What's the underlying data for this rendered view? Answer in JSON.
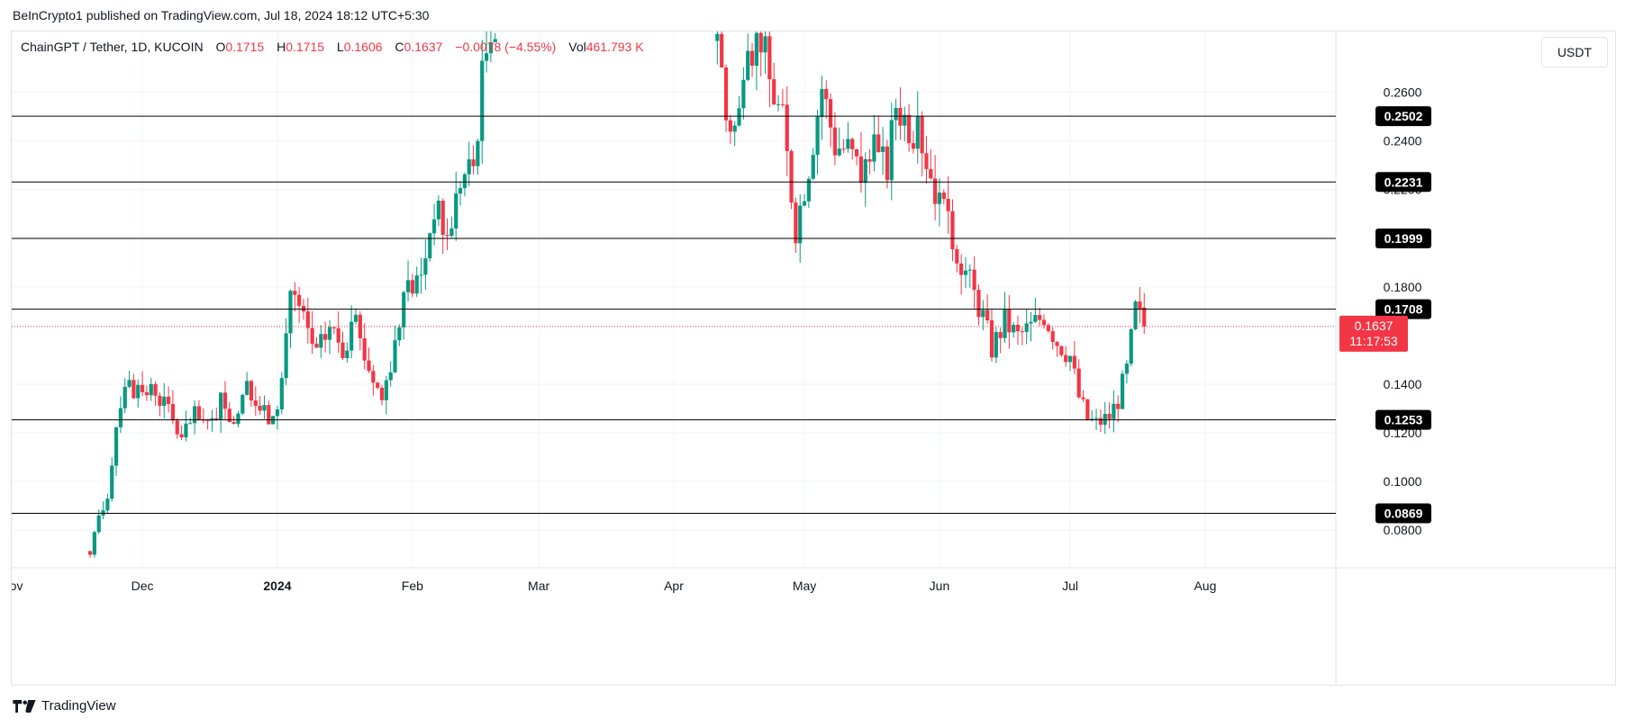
{
  "header": {
    "publisher_line": "BeInCrypto1 published on TradingView.com, Jul 18, 2024 18:12 UTC+5:30"
  },
  "legend": {
    "symbol": "ChainGPT / Tether, 1D, KUCOIN",
    "open_label": "O",
    "open_value": "0.1715",
    "high_label": "H",
    "high_value": "0.1715",
    "low_label": "L",
    "low_value": "0.1606",
    "close_label": "C",
    "close_value": "0.1637",
    "change": "−0.0078 (−4.55%)",
    "vol_label": "Vol",
    "vol_value": "461.793 K"
  },
  "currency_button": "USDT",
  "footer": {
    "brand": "TradingView"
  },
  "colors": {
    "up": "#089981",
    "down": "#f23645",
    "level_line": "#000000",
    "grid": "#f0f3fa",
    "axis_text": "#131722"
  },
  "chart_data": {
    "type": "candlestick",
    "title": "ChainGPT / Tether, 1D, KUCOIN",
    "x_axis": {
      "type": "date",
      "ticks": [
        {
          "date": "2023-11-01",
          "label": "Nov",
          "bold": false
        },
        {
          "date": "2023-12-01",
          "label": "Dec",
          "bold": false
        },
        {
          "date": "2024-01-01",
          "label": "2024",
          "bold": true
        },
        {
          "date": "2024-02-01",
          "label": "Feb",
          "bold": false
        },
        {
          "date": "2024-03-01",
          "label": "Mar",
          "bold": false
        },
        {
          "date": "2024-04-01",
          "label": "Apr",
          "bold": false
        },
        {
          "date": "2024-05-01",
          "label": "May",
          "bold": false
        },
        {
          "date": "2024-06-01",
          "label": "Jun",
          "bold": false
        },
        {
          "date": "2024-07-01",
          "label": "Jul",
          "bold": false
        },
        {
          "date": "2024-08-01",
          "label": "Aug",
          "bold": false
        }
      ],
      "range": [
        "2023-11-01",
        "2024-08-31"
      ]
    },
    "y_axis": {
      "unit": "USDT",
      "range": [
        0.0645,
        0.285
      ],
      "ticks": [
        "0.0800",
        "0.1000",
        "0.1200",
        "0.1400",
        "0.1800",
        "0.2000",
        "0.2200",
        "0.2400",
        "0.2600"
      ]
    },
    "horizontal_levels": [
      "0.2502",
      "0.2231",
      "0.1999",
      "0.1708",
      "0.1253",
      "0.0869"
    ],
    "last_price": {
      "value": "0.1637",
      "countdown": "11:17:53"
    },
    "grid": true,
    "anchors": [
      {
        "date": "2023-11-19",
        "close": 0.068
      },
      {
        "date": "2023-11-21",
        "close": 0.086
      },
      {
        "date": "2023-11-23",
        "close": 0.095
      },
      {
        "date": "2023-11-25",
        "close": 0.124
      },
      {
        "date": "2023-11-27",
        "close": 0.142
      },
      {
        "date": "2023-11-30",
        "close": 0.135
      },
      {
        "date": "2023-12-04",
        "close": 0.138
      },
      {
        "date": "2023-12-07",
        "close": 0.129
      },
      {
        "date": "2023-12-10",
        "close": 0.117
      },
      {
        "date": "2023-12-13",
        "close": 0.127
      },
      {
        "date": "2023-12-16",
        "close": 0.121
      },
      {
        "date": "2023-12-19",
        "close": 0.132
      },
      {
        "date": "2023-12-22",
        "close": 0.126
      },
      {
        "date": "2023-12-25",
        "close": 0.137
      },
      {
        "date": "2023-12-28",
        "close": 0.13
      },
      {
        "date": "2023-12-31",
        "close": 0.124
      },
      {
        "date": "2024-01-02",
        "close": 0.142
      },
      {
        "date": "2024-01-04",
        "close": 0.18
      },
      {
        "date": "2024-01-07",
        "close": 0.166
      },
      {
        "date": "2024-01-10",
        "close": 0.152
      },
      {
        "date": "2024-01-13",
        "close": 0.164
      },
      {
        "date": "2024-01-16",
        "close": 0.155
      },
      {
        "date": "2024-01-19",
        "close": 0.163
      },
      {
        "date": "2024-01-22",
        "close": 0.147
      },
      {
        "date": "2024-01-25",
        "close": 0.134
      },
      {
        "date": "2024-01-28",
        "close": 0.158
      },
      {
        "date": "2024-01-31",
        "close": 0.179
      },
      {
        "date": "2024-02-03",
        "close": 0.184
      },
      {
        "date": "2024-02-06",
        "close": 0.214
      },
      {
        "date": "2024-02-09",
        "close": 0.2
      },
      {
        "date": "2024-02-12",
        "close": 0.224
      },
      {
        "date": "2024-02-15",
        "close": 0.23
      },
      {
        "date": "2024-02-17",
        "close": 0.266
      },
      {
        "date": "2024-02-19",
        "close": 0.29
      },
      {
        "date": "2024-02-21",
        "close": 0.286
      },
      {
        "date": "2024-04-11",
        "close": 0.288
      },
      {
        "date": "2024-04-13",
        "close": 0.25
      },
      {
        "date": "2024-04-15",
        "close": 0.246
      },
      {
        "date": "2024-04-17",
        "close": 0.257
      },
      {
        "date": "2024-04-19",
        "close": 0.28
      },
      {
        "date": "2024-04-21",
        "close": 0.284
      },
      {
        "date": "2024-04-23",
        "close": 0.265
      },
      {
        "date": "2024-04-26",
        "close": 0.248
      },
      {
        "date": "2024-04-29",
        "close": 0.205
      },
      {
        "date": "2024-05-02",
        "close": 0.231
      },
      {
        "date": "2024-05-05",
        "close": 0.263
      },
      {
        "date": "2024-05-08",
        "close": 0.239
      },
      {
        "date": "2024-05-11",
        "close": 0.237
      },
      {
        "date": "2024-05-14",
        "close": 0.227
      },
      {
        "date": "2024-05-17",
        "close": 0.235
      },
      {
        "date": "2024-05-20",
        "close": 0.229
      },
      {
        "date": "2024-05-22",
        "close": 0.256
      },
      {
        "date": "2024-05-25",
        "close": 0.247
      },
      {
        "date": "2024-05-28",
        "close": 0.24
      },
      {
        "date": "2024-06-01",
        "close": 0.214
      },
      {
        "date": "2024-06-04",
        "close": 0.2
      },
      {
        "date": "2024-06-08",
        "close": 0.182
      },
      {
        "date": "2024-06-11",
        "close": 0.168
      },
      {
        "date": "2024-06-13",
        "close": 0.155
      },
      {
        "date": "2024-06-16",
        "close": 0.166
      },
      {
        "date": "2024-06-19",
        "close": 0.16
      },
      {
        "date": "2024-06-22",
        "close": 0.164
      },
      {
        "date": "2024-06-25",
        "close": 0.169
      },
      {
        "date": "2024-06-28",
        "close": 0.158
      },
      {
        "date": "2024-07-01",
        "close": 0.152
      },
      {
        "date": "2024-07-03",
        "close": 0.135
      },
      {
        "date": "2024-07-05",
        "close": 0.126
      },
      {
        "date": "2024-07-07",
        "close": 0.124
      },
      {
        "date": "2024-07-10",
        "close": 0.127
      },
      {
        "date": "2024-07-12",
        "close": 0.134
      },
      {
        "date": "2024-07-14",
        "close": 0.146
      },
      {
        "date": "2024-07-16",
        "close": 0.171
      },
      {
        "date": "2024-07-18",
        "close": 0.1637
      }
    ]
  }
}
